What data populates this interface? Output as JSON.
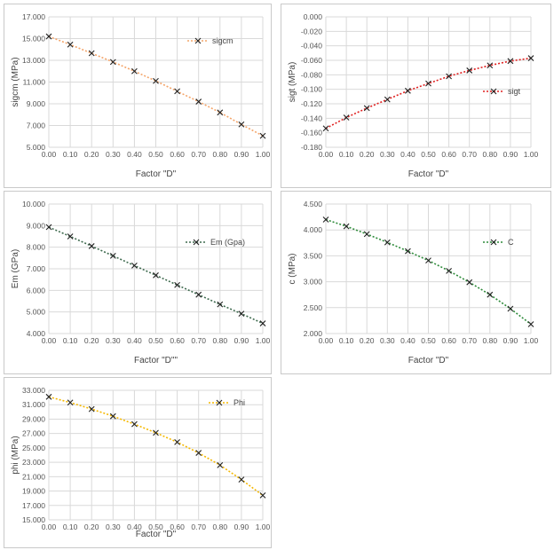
{
  "chart_data": [
    {
      "type": "line",
      "ylabel": "sigcm (MPa)",
      "xlabel": "Factor \"D\"",
      "legend": "sigcm",
      "legend_position": "top-right",
      "color": "#f4a56a",
      "marker": "x",
      "line_style": "dotted",
      "grid": true,
      "x": [
        0.0,
        0.1,
        0.2,
        0.3,
        0.4,
        0.5,
        0.6,
        0.7,
        0.8,
        0.9,
        1.0
      ],
      "x_tick_labels": [
        "0.00",
        "0.10",
        "0.20",
        "0.30",
        "0.40",
        "0.50",
        "0.60",
        "0.70",
        "0.80",
        "0.90",
        "1.00"
      ],
      "values": [
        15.2,
        14.45,
        13.65,
        12.85,
        12.0,
        11.1,
        10.15,
        9.2,
        8.2,
        7.1,
        6.05
      ],
      "ylim": [
        5.0,
        17.0
      ],
      "y_ticks": [
        5.0,
        7.0,
        9.0,
        11.0,
        13.0,
        15.0,
        17.0
      ],
      "y_tick_labels": [
        "5.000",
        "7.000",
        "9.000",
        "11.000",
        "13.000",
        "15.000",
        "17.000"
      ]
    },
    {
      "type": "line",
      "ylabel": "sigt (MPa)",
      "xlabel": "Factor \"D\"",
      "legend": "sigt",
      "legend_position": "right",
      "color": "#e02020",
      "marker": "x",
      "line_style": "dotted",
      "grid": true,
      "x": [
        0.0,
        0.1,
        0.2,
        0.3,
        0.4,
        0.5,
        0.6,
        0.7,
        0.8,
        0.9,
        1.0
      ],
      "x_tick_labels": [
        "0.00",
        "0.10",
        "0.20",
        "0.30",
        "0.40",
        "0.50",
        "0.60",
        "0.70",
        "0.80",
        "0.90",
        "1.00"
      ],
      "values": [
        -0.154,
        -0.139,
        -0.126,
        -0.114,
        -0.102,
        -0.092,
        -0.082,
        -0.074,
        -0.067,
        -0.061,
        -0.057
      ],
      "ylim": [
        -0.18,
        0.0
      ],
      "y_ticks": [
        -0.18,
        -0.16,
        -0.14,
        -0.12,
        -0.1,
        -0.08,
        -0.06,
        -0.04,
        -0.02,
        0.0
      ],
      "y_tick_labels": [
        "-0.180",
        "-0.160",
        "-0.140",
        "-0.120",
        "-0.100",
        "-0.080",
        "-0.060",
        "-0.040",
        "-0.020",
        "0.000"
      ]
    },
    {
      "type": "line",
      "ylabel": "Em (GPa)",
      "xlabel": "Factor \"D\"\"",
      "legend": "Em (Gpa)",
      "legend_position": "top-right",
      "color": "#3f6b4f",
      "marker": "x",
      "line_style": "dotted",
      "grid": true,
      "x": [
        0.0,
        0.1,
        0.2,
        0.3,
        0.4,
        0.5,
        0.6,
        0.7,
        0.8,
        0.9,
        1.0
      ],
      "x_tick_labels": [
        "0.00",
        "0.10",
        "0.20",
        "0.30",
        "0.40",
        "0.50",
        "0.60",
        "0.70",
        "0.80",
        "0.90",
        "1.00"
      ],
      "values": [
        8.93,
        8.5,
        8.05,
        7.6,
        7.15,
        6.7,
        6.25,
        5.8,
        5.35,
        4.92,
        4.47
      ],
      "ylim": [
        4.0,
        10.0
      ],
      "y_ticks": [
        4.0,
        5.0,
        6.0,
        7.0,
        8.0,
        9.0,
        10.0
      ],
      "y_tick_labels": [
        "4.000",
        "5.000",
        "6.000",
        "7.000",
        "8.000",
        "9.000",
        "10.000"
      ]
    },
    {
      "type": "line",
      "ylabel": "c (MPa)",
      "xlabel": "Factor \"D\"",
      "legend": "C",
      "legend_position": "top-right",
      "color": "#2e8b3a",
      "marker": "x",
      "line_style": "dotted",
      "grid": true,
      "x": [
        0.0,
        0.1,
        0.2,
        0.3,
        0.4,
        0.5,
        0.6,
        0.7,
        0.8,
        0.9,
        1.0
      ],
      "x_tick_labels": [
        "0.00",
        "0.10",
        "0.20",
        "0.30",
        "0.40",
        "0.50",
        "0.60",
        "0.70",
        "0.80",
        "0.90",
        "1.00"
      ],
      "values": [
        4.2,
        4.07,
        3.92,
        3.76,
        3.59,
        3.41,
        3.21,
        2.99,
        2.75,
        2.48,
        2.18
      ],
      "ylim": [
        2.0,
        4.5
      ],
      "y_ticks": [
        2.0,
        2.5,
        3.0,
        3.5,
        4.0,
        4.5
      ],
      "y_tick_labels": [
        "2.000",
        "2.500",
        "3.000",
        "3.500",
        "4.000",
        "4.500"
      ]
    },
    {
      "type": "line",
      "ylabel": "phi (MPa)",
      "xlabel": "Factor \"D\"",
      "legend": "Phi",
      "legend_position": "top-right",
      "color": "#f5b800",
      "marker": "x",
      "line_style": "dotted",
      "grid": true,
      "x": [
        0.0,
        0.1,
        0.2,
        0.3,
        0.4,
        0.5,
        0.6,
        0.7,
        0.8,
        0.9,
        1.0
      ],
      "x_tick_labels": [
        "0.00",
        "0.10",
        "0.20",
        "0.30",
        "0.40",
        "0.50",
        "0.60",
        "0.70",
        "0.80",
        "0.90",
        "1.00"
      ],
      "values": [
        32.1,
        31.3,
        30.4,
        29.4,
        28.3,
        27.1,
        25.8,
        24.3,
        22.6,
        20.6,
        18.4
      ],
      "ylim": [
        15.0,
        33.0
      ],
      "y_ticks": [
        15.0,
        17.0,
        19.0,
        21.0,
        23.0,
        25.0,
        27.0,
        29.0,
        31.0,
        33.0
      ],
      "y_tick_labels": [
        "15.000",
        "17.000",
        "19.000",
        "21.000",
        "23.000",
        "25.000",
        "27.000",
        "29.000",
        "31.000",
        "33.000"
      ]
    }
  ]
}
